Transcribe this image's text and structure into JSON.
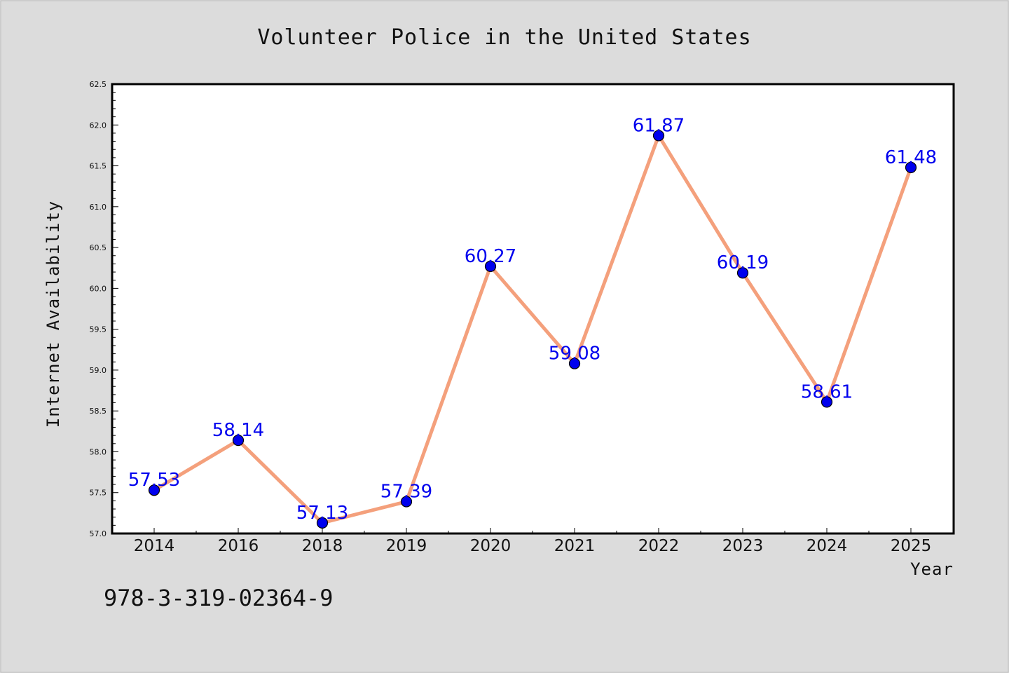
{
  "footnote": "978-3-319-02364-9",
  "colors": {
    "background": "#dcdcdc",
    "plot_background": "#ffffff",
    "line": "#f4a07c",
    "marker": "#0000ee",
    "data_label": "#0000ee"
  },
  "chart_data": {
    "type": "line",
    "title": "Volunteer Police in the United States",
    "xlabel": "Year",
    "ylabel": "Internet Availability",
    "categories": [
      "2014",
      "2016",
      "2018",
      "2019",
      "2020",
      "2021",
      "2022",
      "2023",
      "2024",
      "2025"
    ],
    "series": [
      {
        "values": [
          57.53,
          58.14,
          57.13,
          57.39,
          60.27,
          59.08,
          61.87,
          60.19,
          58.61,
          61.48
        ],
        "labels": [
          "57.53",
          "58.14",
          "57.13",
          "57.39",
          "60.27",
          "59.08",
          "61.87",
          "60.19",
          "58.61",
          "61.48"
        ]
      }
    ],
    "ylim": [
      57.0,
      62.5
    ],
    "yticks": [
      "57.0",
      "57.5",
      "58.0",
      "58.5",
      "59.0",
      "59.5",
      "60.0",
      "60.5",
      "61.0",
      "61.5",
      "62.0",
      "62.5"
    ],
    "grid": false,
    "legend": "none"
  }
}
